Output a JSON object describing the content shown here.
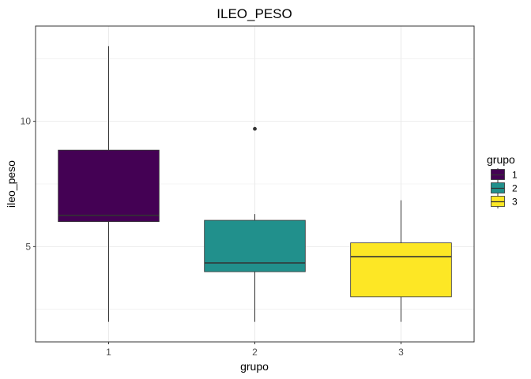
{
  "chart_data": {
    "type": "box",
    "title": "ILEO_PESO",
    "xlabel": "grupo",
    "ylabel": "ileo_peso",
    "categories": [
      "1",
      "2",
      "3"
    ],
    "yticks": [
      5,
      10
    ],
    "ylim": [
      1.2,
      13.8
    ],
    "grid": true,
    "legend": {
      "title": "grupo",
      "position": "right",
      "entries": [
        "1",
        "2",
        "3"
      ]
    },
    "boxes": [
      {
        "group": "1",
        "min": 2.0,
        "q1": 6.0,
        "median": 6.25,
        "q3": 8.85,
        "max": 13.0,
        "outliers": [],
        "color": "#440154"
      },
      {
        "group": "2",
        "min": 2.0,
        "q1": 4.0,
        "median": 4.35,
        "q3": 6.05,
        "max": 6.3,
        "outliers": [
          9.7
        ],
        "color": "#21908C"
      },
      {
        "group": "3",
        "min": 2.0,
        "q1": 3.0,
        "median": 4.6,
        "q3": 5.15,
        "max": 6.85,
        "outliers": [],
        "color": "#FDE725"
      }
    ]
  }
}
